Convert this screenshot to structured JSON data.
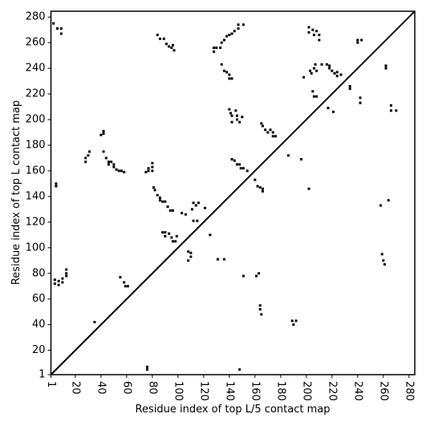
{
  "chart_data": {
    "type": "scatter",
    "x_label": "Residue index of top L/5 contact map",
    "y_label": "Residue index of top L contact map",
    "xlim": [
      1,
      284.5
    ],
    "ylim": [
      1,
      284.5
    ],
    "xticks": [
      1,
      20,
      40,
      60,
      80,
      100,
      120,
      140,
      160,
      180,
      200,
      220,
      240,
      260,
      280
    ],
    "yticks": [
      1,
      20,
      40,
      60,
      80,
      100,
      120,
      140,
      160,
      180,
      200,
      220,
      240,
      260,
      280
    ],
    "diagonal": true,
    "color": "#000000",
    "x": [
      3,
      6,
      9,
      9,
      5,
      5,
      4,
      4,
      7,
      7,
      10,
      13,
      13,
      13,
      10,
      28,
      28,
      30,
      31,
      40,
      42,
      42,
      42,
      44,
      46,
      46,
      48,
      50,
      50,
      52,
      54,
      56,
      58,
      35,
      55,
      58,
      59,
      61,
      76,
      76,
      75,
      77,
      77,
      80,
      80,
      80,
      81,
      82,
      84,
      86,
      86,
      88,
      90,
      92,
      94,
      96,
      88,
      90,
      90,
      93,
      95,
      96,
      98,
      99,
      103,
      106,
      108,
      110,
      108,
      110,
      111,
      112,
      114,
      116,
      112,
      115,
      121,
      125,
      131,
      136,
      148,
      151,
      84,
      86,
      89,
      91,
      93,
      95,
      96,
      97,
      128,
      128,
      130,
      133,
      134,
      136,
      138,
      140,
      142,
      144,
      147,
      147,
      151,
      134,
      136,
      138,
      140,
      140,
      142,
      140,
      141,
      142,
      142,
      145,
      146,
      146,
      148,
      150,
      142,
      144,
      146,
      148,
      149,
      151,
      154,
      160,
      162,
      164,
      166,
      166,
      161,
      163,
      164,
      164,
      165,
      165,
      166,
      168,
      170,
      172,
      174,
      174,
      176,
      186,
      189,
      192,
      190,
      196,
      202,
      198,
      202,
      202,
      205,
      206,
      208,
      210,
      210,
      207,
      212,
      203,
      204,
      206,
      208,
      205,
      206,
      208,
      216,
      218,
      218,
      220,
      222,
      224,
      224,
      227,
      217,
      221,
      234,
      234,
      240,
      240,
      243,
      242,
      242,
      259,
      260,
      261,
      262,
      262,
      264,
      266,
      266,
      270,
      258
    ],
    "y": [
      275,
      271,
      271,
      267,
      150,
      148,
      75,
      72,
      74,
      71,
      76,
      78,
      80,
      83,
      73,
      170,
      167,
      172,
      175,
      188,
      191,
      189,
      175,
      170,
      167,
      165,
      167,
      165,
      163,
      161,
      160,
      160,
      159,
      42,
      77,
      73,
      70,
      70,
      7,
      5,
      159,
      160,
      162,
      163,
      166,
      160,
      147,
      145,
      141,
      139,
      137,
      136,
      136,
      132,
      129,
      129,
      112,
      112,
      109,
      111,
      108,
      105,
      105,
      109,
      127,
      126,
      97,
      93,
      90,
      96,
      130,
      135,
      133,
      135,
      121,
      121,
      131,
      110,
      91,
      91,
      5,
      78,
      266,
      263,
      263,
      259,
      257,
      256,
      258,
      254,
      253,
      256,
      256,
      256,
      260,
      262,
      265,
      266,
      267,
      269,
      271,
      274,
      274,
      243,
      238,
      237,
      235,
      232,
      232,
      208,
      205,
      203,
      198,
      207,
      203,
      200,
      198,
      202,
      169,
      168,
      165,
      165,
      162,
      162,
      160,
      153,
      148,
      147,
      146,
      144,
      78,
      80,
      55,
      52,
      48,
      197,
      195,
      192,
      190,
      192,
      190,
      187,
      187,
      172,
      43,
      43,
      40,
      169,
      146,
      233,
      272,
      268,
      270,
      266,
      269,
      266,
      262,
      243,
      243,
      238,
      236,
      240,
      238,
      222,
      218,
      218,
      243,
      240,
      242,
      238,
      236,
      237,
      234,
      235,
      209,
      206,
      226,
      224,
      262,
      260,
      262,
      217,
      213,
      95,
      90,
      87,
      242,
      240,
      137,
      211,
      207,
      207,
      133
    ]
  }
}
